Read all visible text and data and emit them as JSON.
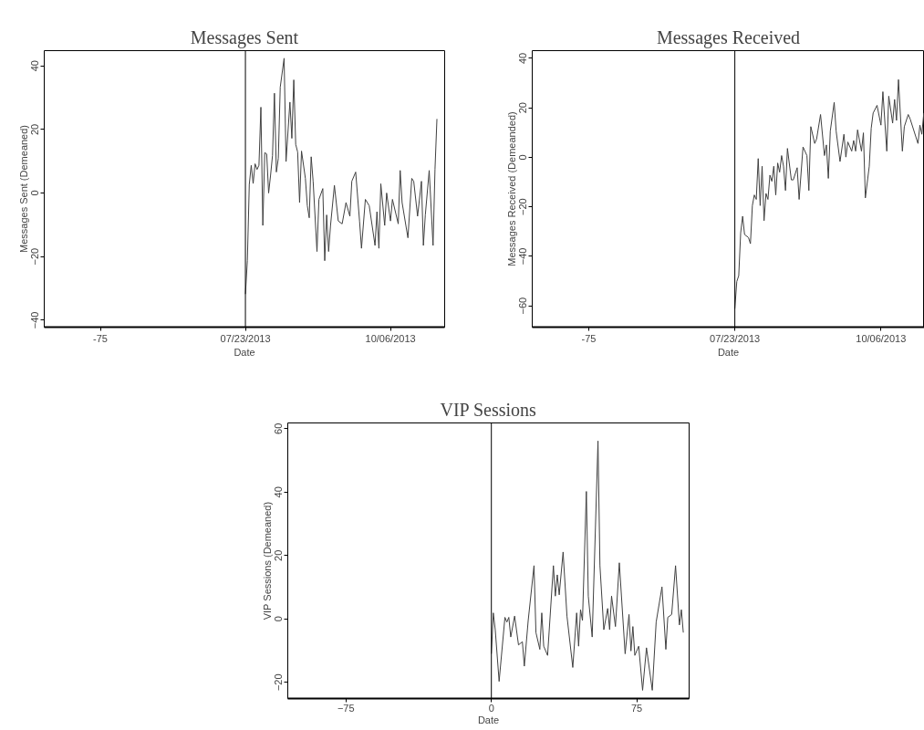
{
  "chart_data": [
    {
      "type": "line",
      "title": "Messages Sent",
      "xlabel": "Date",
      "ylabel": "Messages Sent (Demeaned)",
      "color": "#404040",
      "xlim": [
        "2013-04-10",
        "2013-11-03"
      ],
      "xticks": [
        {
          "value": "2013-05-09",
          "label": "-75"
        },
        {
          "value": "2013-07-23",
          "label": "07/23/2013"
        },
        {
          "value": "2013-10-06",
          "label": "10/06/2013"
        }
      ],
      "ylim": [
        -42.2,
        44.8
      ],
      "yticks": [
        -40,
        -20,
        0,
        20,
        40
      ],
      "ref_lines": [
        {
          "axis": "x",
          "value": "2013-07-23",
          "color": "#000000"
        }
      ],
      "x": [
        "2013-07-23",
        "2013-07-24",
        "2013-07-25",
        "2013-07-26",
        "2013-07-27",
        "2013-07-28",
        "2013-07-29",
        "2013-07-30",
        "2013-07-31",
        "2013-08-01",
        "2013-08-02",
        "2013-08-03",
        "2013-08-04",
        "2013-08-05",
        "2013-08-06",
        "2013-08-07",
        "2013-08-08",
        "2013-08-09",
        "2013-08-10",
        "2013-08-12",
        "2013-08-13",
        "2013-08-15",
        "2013-08-16",
        "2013-08-17",
        "2013-08-18",
        "2013-08-19",
        "2013-08-20",
        "2013-08-21",
        "2013-08-23",
        "2013-08-24",
        "2013-08-25",
        "2013-08-26",
        "2013-08-27",
        "2013-08-29",
        "2013-08-30",
        "2013-09-01",
        "2013-09-02",
        "2013-09-03",
        "2013-09-04",
        "2013-09-05",
        "2013-09-07",
        "2013-09-09",
        "2013-09-11",
        "2013-09-13",
        "2013-09-15",
        "2013-09-16",
        "2013-09-18",
        "2013-09-20",
        "2013-09-21",
        "2013-09-23",
        "2013-09-25",
        "2013-09-28",
        "2013-09-29",
        "2013-09-30",
        "2013-10-01",
        "2013-10-03",
        "2013-10-04",
        "2013-10-06",
        "2013-10-07",
        "2013-10-10",
        "2013-10-11",
        "2013-10-12",
        "2013-10-15",
        "2013-10-17",
        "2013-10-18",
        "2013-10-20",
        "2013-10-22",
        "2013-10-23",
        "2013-10-24",
        "2013-10-26",
        "2013-10-28",
        "2013-10-29",
        "2013-10-30"
      ],
      "values": [
        -31.8,
        -21.3,
        2.7,
        8.7,
        3,
        9.2,
        7.4,
        8.7,
        27,
        -10.2,
        12.7,
        12.3,
        0,
        5.6,
        11.8,
        31.4,
        6.6,
        10.9,
        33.3,
        42.4,
        9.9,
        28.6,
        17.2,
        35.6,
        15.3,
        12.9,
        -3,
        13.2,
        4.6,
        -4,
        -7.8,
        11.4,
        3.7,
        -18.4,
        -2,
        1.4,
        -21.3,
        -6.9,
        -18.4,
        -10.2,
        2.4,
        -8.8,
        -9.7,
        -3,
        -7.3,
        3.7,
        6.6,
        -8.8,
        -17.4,
        -2,
        -4,
        -16.5,
        -5.9,
        -17.4,
        2.9,
        -10.2,
        0,
        -8.8,
        -2,
        -9.7,
        7.1,
        -3,
        -14.1,
        4.6,
        3.7,
        -7.3,
        3.7,
        -16.5,
        -6.9,
        7.1,
        -16.5,
        7.5,
        23.3
      ]
    },
    {
      "type": "line",
      "title": "Messages Received",
      "xlabel": "Date",
      "ylabel": "Messages Received (Demeanded)",
      "color": "#404040",
      "xlim": [
        "2013-04-10",
        "2013-10-28T08:00"
      ],
      "xticks": [
        {
          "value": "2013-05-09",
          "label": "-75"
        },
        {
          "value": "2013-07-23",
          "label": "07/23/2013"
        },
        {
          "value": "2013-10-06",
          "label": "10/06/2013"
        }
      ],
      "ylim": [
        -68.6,
        43.1
      ],
      "yticks": [
        -60,
        -40,
        -20,
        0,
        20,
        40
      ],
      "ref_lines": [
        {
          "axis": "x",
          "value": "2013-07-23",
          "color": "#000000"
        }
      ],
      "x": [
        "2013-07-23",
        "2013-07-24",
        "2013-07-25",
        "2013-07-26",
        "2013-07-27",
        "2013-07-28",
        "2013-07-30",
        "2013-07-31",
        "2013-08-01",
        "2013-08-02",
        "2013-08-03",
        "2013-08-04",
        "2013-08-05",
        "2013-08-06",
        "2013-08-07",
        "2013-08-08",
        "2013-08-09",
        "2013-08-10",
        "2013-08-11",
        "2013-08-12",
        "2013-08-13",
        "2013-08-14",
        "2013-08-15",
        "2013-08-16",
        "2013-08-17",
        "2013-08-18",
        "2013-08-19",
        "2013-08-21",
        "2013-08-22",
        "2013-08-24",
        "2013-08-25",
        "2013-08-27",
        "2013-08-29",
        "2013-08-30",
        "2013-08-31",
        "2013-09-02",
        "2013-09-03",
        "2013-09-05",
        "2013-09-07",
        "2013-09-08",
        "2013-09-09",
        "2013-09-10",
        "2013-09-12",
        "2013-09-13",
        "2013-09-15",
        "2013-09-17",
        "2013-09-18",
        "2013-09-19",
        "2013-09-21",
        "2013-09-22",
        "2013-09-23",
        "2013-09-24",
        "2013-09-26",
        "2013-09-27",
        "2013-09-28",
        "2013-09-30",
        "2013-10-01",
        "2013-10-02",
        "2013-10-04",
        "2013-10-06",
        "2013-10-07",
        "2013-10-09",
        "2013-10-10",
        "2013-10-12",
        "2013-10-13",
        "2013-10-14",
        "2013-10-15",
        "2013-10-17",
        "2013-10-18",
        "2013-10-20",
        "2013-10-21",
        "2013-10-25",
        "2013-10-26",
        "2013-10-27",
        "2013-10-28"
      ],
      "values": [
        -61.2,
        -50.2,
        -47.8,
        -30.5,
        -23.8,
        -31.2,
        -32.4,
        -34.9,
        -19.5,
        -15.2,
        -17,
        -0.5,
        -19.5,
        -3.6,
        -25.6,
        -14.6,
        -17,
        -7.2,
        -9.7,
        -3.6,
        -15.2,
        -2.3,
        -6,
        0.7,
        -3.6,
        -13.4,
        3.6,
        -9.1,
        -9.1,
        -4.2,
        -17,
        4.2,
        0.7,
        -13.4,
        12.4,
        5.6,
        7.5,
        17.3,
        0.7,
        5,
        -8.5,
        10.6,
        22.2,
        10.6,
        -1.7,
        9.3,
        0.1,
        6.2,
        2.5,
        6.8,
        2.5,
        11.1,
        2.5,
        9.9,
        -16.4,
        -3.6,
        11.7,
        17.9,
        21,
        13,
        26.5,
        2.5,
        24.7,
        13.8,
        23.4,
        14.9,
        31.4,
        2.5,
        12.4,
        17.3,
        15.5,
        5.6,
        13,
        9.3,
        17.9
      ]
    },
    {
      "type": "line",
      "title": "VIP Sessions",
      "xlabel": "Date",
      "ylabel": "VIP Sessions (Demeaned)",
      "color": "#404040",
      "xlim": [
        -105,
        102
      ],
      "xticks": [
        -75,
        0,
        75
      ],
      "ylim": [
        -25.1,
        61.8
      ],
      "yticks": [
        -20,
        0,
        20,
        40,
        60
      ],
      "ref_lines": [
        {
          "axis": "x",
          "value": 0,
          "color": "#000000"
        }
      ],
      "x": [
        0,
        1,
        2,
        4,
        7,
        8,
        9,
        10,
        12,
        14,
        16,
        17,
        19,
        22,
        23,
        25,
        26,
        27,
        29,
        32,
        33,
        34,
        35,
        37,
        39,
        42,
        44,
        45,
        46,
        47,
        49,
        50,
        52,
        55,
        56,
        58,
        60,
        61,
        62,
        64,
        66,
        69,
        71,
        72,
        73,
        74,
        76,
        78,
        80,
        83,
        85,
        88,
        90,
        91,
        93,
        95,
        97,
        98,
        99
      ],
      "values": [
        -11,
        1.9,
        -3.4,
        -19.7,
        0.5,
        -1,
        0.5,
        -5.7,
        0.9,
        -8.2,
        -7.2,
        -14.9,
        -0.5,
        16.8,
        -4.3,
        -9.6,
        1.9,
        -8.6,
        -11.5,
        16.8,
        7.2,
        13.9,
        7.6,
        21.1,
        0.9,
        -15.3,
        1.9,
        -8.6,
        2.9,
        -0.5,
        40.2,
        7.2,
        -5.7,
        56.1,
        16.8,
        -3.4,
        3.3,
        -3.4,
        7.2,
        -2.4,
        17.7,
        -11,
        1.4,
        -10.1,
        -2.4,
        -11.5,
        -8.6,
        -22.5,
        -9.1,
        -22.5,
        -1,
        10.1,
        -9.6,
        0.5,
        1.4,
        16.8,
        -1.9,
        2.9,
        -4.3
      ]
    }
  ]
}
